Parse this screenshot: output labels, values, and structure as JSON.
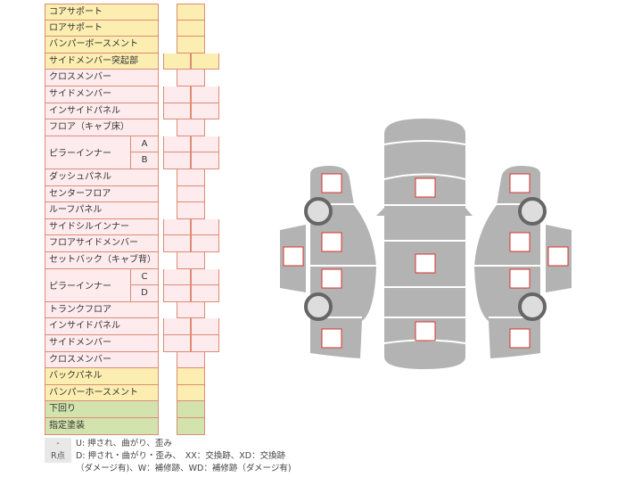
{
  "colors": {
    "yellow": "#fbeeb0",
    "pink": "#fdebee",
    "green": "#d3e3ad",
    "border": "#dd8c74",
    "body": "#b3b3b3",
    "marker": "#d9322b"
  },
  "rows": [
    {
      "label": "コアサポート",
      "cells": "single",
      "color": "y"
    },
    {
      "label": "ロアサポート",
      "cells": "single",
      "color": "y"
    },
    {
      "label": "バンパーボースメント",
      "cells": "single",
      "color": "y"
    },
    {
      "label": "サイドメンバー突起部",
      "cells": "double",
      "color": "y"
    },
    {
      "label": "クロスメンバー",
      "cells": "single",
      "color": "p"
    },
    {
      "label": "サイドメンバー",
      "cells": "double",
      "color": "p"
    },
    {
      "label": "インサイドパネル",
      "cells": "double",
      "color": "p"
    },
    {
      "label": "フロア（キャブ床）",
      "cells": "single",
      "color": "p"
    },
    {
      "label": "ピラーインナー",
      "sub": "A",
      "cells": "double",
      "color": "p"
    },
    {
      "label": "ピラーインナー",
      "sub": "B",
      "cells": "double",
      "color": "p"
    },
    {
      "label": "ダッシュパネル",
      "cells": "single",
      "color": "p"
    },
    {
      "label": "センターフロア",
      "cells": "single",
      "color": "p"
    },
    {
      "label": "ルーフパネル",
      "cells": "single",
      "color": "p"
    },
    {
      "label": "サイドシルインナー",
      "cells": "double",
      "color": "p"
    },
    {
      "label": "フロアサイドメンバー",
      "cells": "double",
      "color": "p"
    },
    {
      "label": "セットバック（キャブ背）",
      "cells": "single",
      "color": "p"
    },
    {
      "label": "ピラーインナー",
      "sub": "C",
      "cells": "double",
      "color": "p"
    },
    {
      "label": "ピラーインナー",
      "sub": "D",
      "cells": "double",
      "color": "p"
    },
    {
      "label": "トランクフロア",
      "cells": "single",
      "color": "p"
    },
    {
      "label": "インサイドパネル",
      "cells": "double",
      "color": "p"
    },
    {
      "label": "サイドメンバー",
      "cells": "double",
      "color": "p"
    },
    {
      "label": "クロスメンバー",
      "cells": "single",
      "color": "p"
    },
    {
      "label": "バックパネル",
      "cells": "single",
      "color": "y"
    },
    {
      "label": "バンパーホースメント",
      "cells": "single",
      "color": "y"
    },
    {
      "label": "下回り",
      "cells": "single",
      "color": "g"
    },
    {
      "label": "指定塗装",
      "cells": "single",
      "color": "g"
    }
  ],
  "legend": [
    {
      "key": "-",
      "text": "U: 押され、曲がり、歪み"
    },
    {
      "key": "R点",
      "text": "D: 押され・曲がり・歪み、　XX：交換跡、XD：交換跡"
    },
    {
      "key": "",
      "text": "（ダメージ有)、W：補修跡、WD：補修跡（ダメージ有)"
    }
  ]
}
